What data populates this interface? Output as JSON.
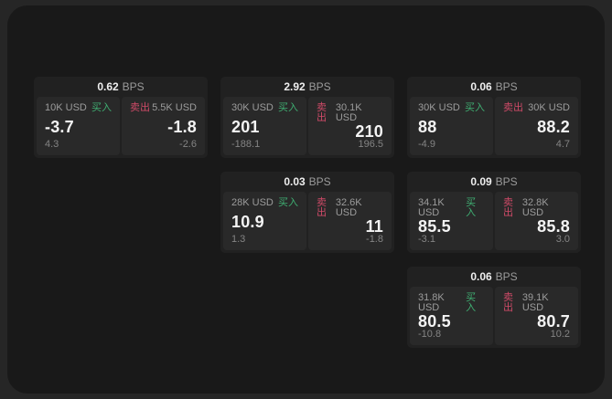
{
  "labels": {
    "bps_unit": "BPS",
    "buy": "买入",
    "sell": "卖出"
  },
  "colors": {
    "buy": "#3fae72",
    "sell": "#cf4a68",
    "window_bg": "#191919",
    "card_bg": "#212121",
    "panel_bg": "#292929"
  },
  "cards": [
    {
      "bps": "0.62",
      "buy": {
        "size": "10K USD",
        "price": "-3.7",
        "delta": "4.3"
      },
      "sell": {
        "size": "5.5K USD",
        "price": "-1.8",
        "delta": "-2.6"
      }
    },
    {
      "bps": "2.92",
      "buy": {
        "size": "30K USD",
        "price": "201",
        "delta": "-188.1"
      },
      "sell": {
        "size": "30.1K USD",
        "price": "210",
        "delta": "196.5"
      }
    },
    {
      "bps": "0.06",
      "buy": {
        "size": "30K USD",
        "price": "88",
        "delta": "-4.9"
      },
      "sell": {
        "size": "30K USD",
        "price": "88.2",
        "delta": "4.7"
      }
    },
    {
      "bps": "0.03",
      "buy": {
        "size": "28K USD",
        "price": "10.9",
        "delta": "1.3"
      },
      "sell": {
        "size": "32.6K USD",
        "price": "11",
        "delta": "-1.8"
      }
    },
    {
      "bps": "0.09",
      "buy": {
        "size": "34.1K USD",
        "price": "85.5",
        "delta": "-3.1"
      },
      "sell": {
        "size": "32.8K USD",
        "price": "85.8",
        "delta": "3.0"
      }
    },
    {
      "bps": "0.06",
      "buy": {
        "size": "31.8K USD",
        "price": "80.5",
        "delta": "-10.8"
      },
      "sell": {
        "size": "39.1K USD",
        "price": "80.7",
        "delta": "10.2"
      }
    }
  ]
}
